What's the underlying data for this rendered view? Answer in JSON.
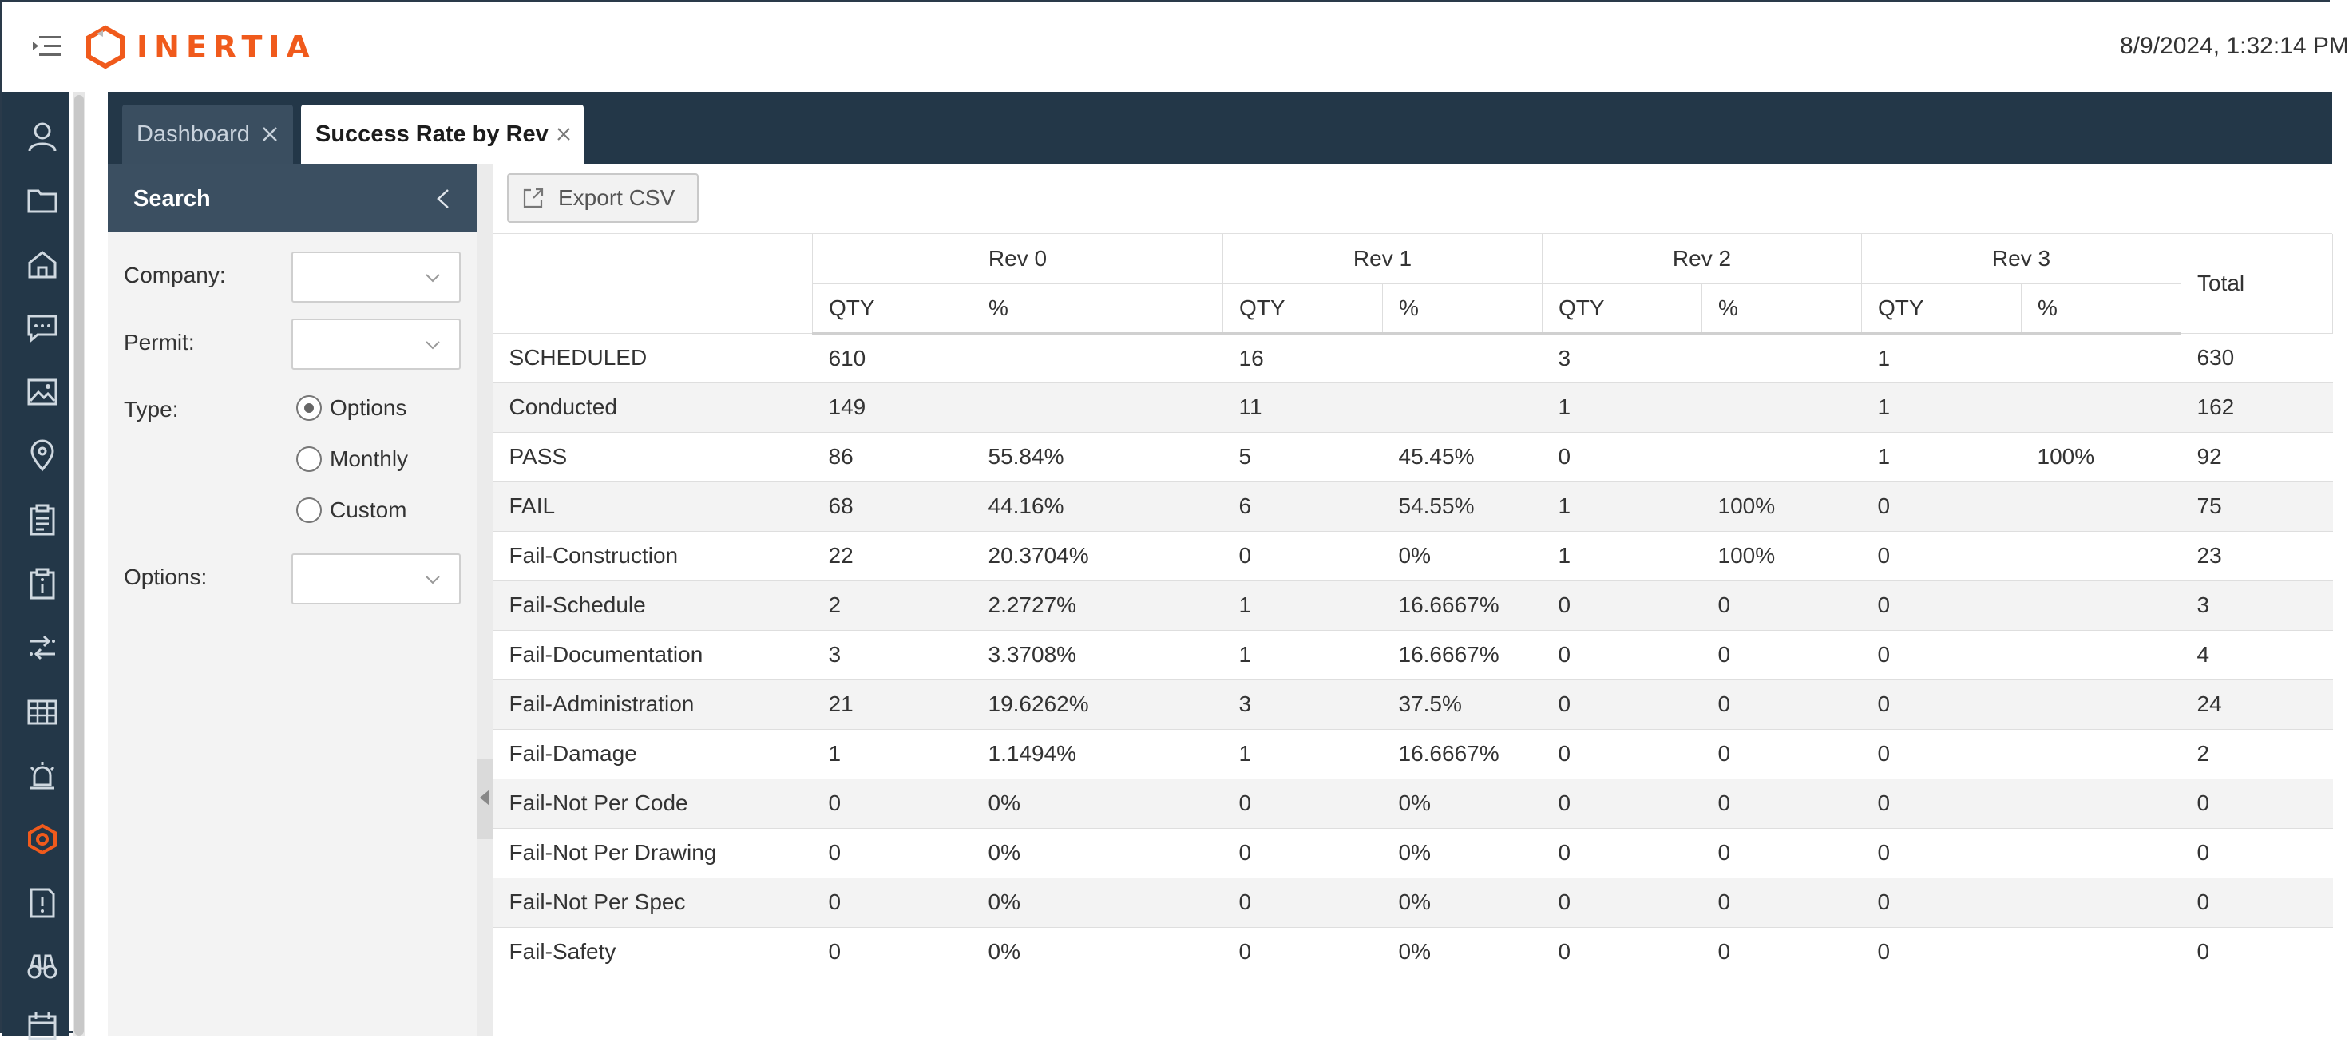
{
  "header": {
    "brand": "INERTIA",
    "datetime": "8/9/2024, 1:32:14 PM",
    "brand_color": "#f05a1c"
  },
  "rail": {
    "icons": [
      "user-icon",
      "folder-icon",
      "home-icon",
      "chat-icon",
      "image-icon",
      "location-pin-icon",
      "clipboard-list-icon",
      "clipboard-info-icon",
      "transfer-icon",
      "table-grid-icon",
      "alarm-icon",
      "inertia-logo-icon",
      "report-alert-icon",
      "binoculars-icon",
      "calendar-icon"
    ],
    "background": "#233748"
  },
  "tabs": [
    {
      "label": "Dashboard",
      "active": false
    },
    {
      "label": "Success Rate by Rev",
      "active": true
    }
  ],
  "search": {
    "title": "Search",
    "company_label": "Company:",
    "company_value": "",
    "permit_label": "Permit:",
    "permit_value": "",
    "type_label": "Type:",
    "type_options": [
      {
        "label": "Options",
        "checked": true
      },
      {
        "label": "Monthly",
        "checked": false
      },
      {
        "label": "Custom",
        "checked": false
      }
    ],
    "options_label": "Options:",
    "options_value": ""
  },
  "toolbar": {
    "export_label": "Export CSV"
  },
  "table": {
    "rev_headers": [
      "Rev 0",
      "Rev 1",
      "Rev 2",
      "Rev 3"
    ],
    "qty_label": "QTY",
    "pct_label": "%",
    "total_label": "Total",
    "rows": [
      {
        "label": "SCHEDULED",
        "cells": [
          "610",
          "",
          "16",
          "",
          "3",
          "",
          "1",
          ""
        ],
        "total": "630"
      },
      {
        "label": "Conducted",
        "cells": [
          "149",
          "",
          "11",
          "",
          "1",
          "",
          "1",
          ""
        ],
        "total": "162"
      },
      {
        "label": "PASS",
        "cells": [
          "86",
          "55.84%",
          "5",
          "45.45%",
          "0",
          "",
          "1",
          "100%"
        ],
        "total": "92"
      },
      {
        "label": "FAIL",
        "cells": [
          "68",
          "44.16%",
          "6",
          "54.55%",
          "1",
          "100%",
          "0",
          ""
        ],
        "total": "75"
      },
      {
        "label": "Fail-Construction",
        "cells": [
          "22",
          "20.3704%",
          "0",
          "0%",
          "1",
          "100%",
          "0",
          ""
        ],
        "total": "23"
      },
      {
        "label": "Fail-Schedule",
        "cells": [
          "2",
          "2.2727%",
          "1",
          "16.6667%",
          "0",
          "0",
          "0",
          ""
        ],
        "total": "3"
      },
      {
        "label": "Fail-Documentation",
        "cells": [
          "3",
          "3.3708%",
          "1",
          "16.6667%",
          "0",
          "0",
          "0",
          ""
        ],
        "total": "4"
      },
      {
        "label": "Fail-Administration",
        "cells": [
          "21",
          "19.6262%",
          "3",
          "37.5%",
          "0",
          "0",
          "0",
          ""
        ],
        "total": "24"
      },
      {
        "label": "Fail-Damage",
        "cells": [
          "1",
          "1.1494%",
          "1",
          "16.6667%",
          "0",
          "0",
          "0",
          ""
        ],
        "total": "2"
      },
      {
        "label": "Fail-Not Per Code",
        "cells": [
          "0",
          "0%",
          "0",
          "0%",
          "0",
          "0",
          "0",
          ""
        ],
        "total": "0"
      },
      {
        "label": "Fail-Not Per Drawing",
        "cells": [
          "0",
          "0%",
          "0",
          "0%",
          "0",
          "0",
          "0",
          ""
        ],
        "total": "0"
      },
      {
        "label": "Fail-Not Per Spec",
        "cells": [
          "0",
          "0%",
          "0",
          "0%",
          "0",
          "0",
          "0",
          ""
        ],
        "total": "0"
      },
      {
        "label": "Fail-Safety",
        "cells": [
          "0",
          "0%",
          "0",
          "0%",
          "0",
          "0",
          "0",
          ""
        ],
        "total": "0"
      }
    ],
    "link_color": "#1a1acc"
  }
}
